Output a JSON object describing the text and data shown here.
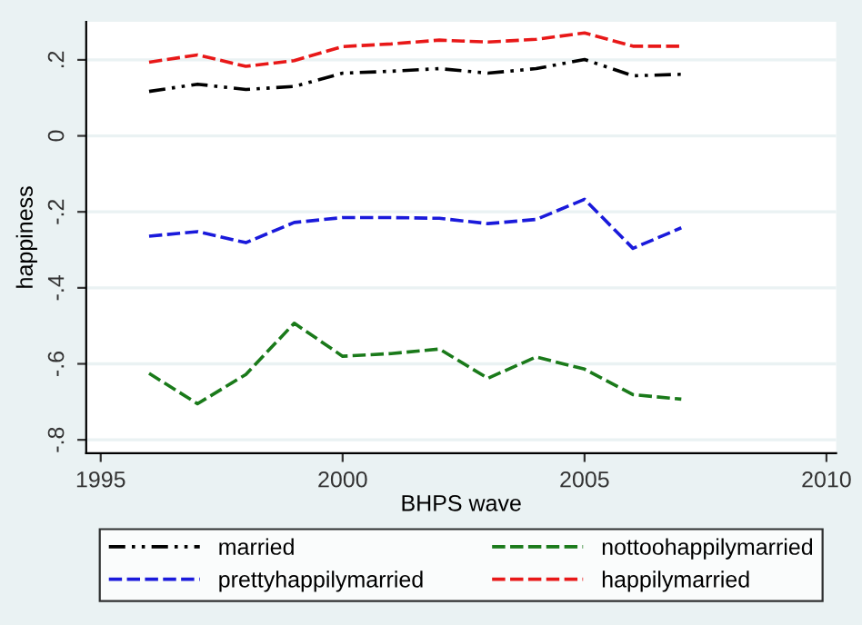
{
  "chart_data": {
    "type": "line",
    "xlabel": "BHPS wave",
    "ylabel": "happiness",
    "x": [
      1996,
      1997,
      1998,
      1999,
      2000,
      2001,
      2002,
      2003,
      2004,
      2005,
      2006,
      2007
    ],
    "series": [
      {
        "name": "married",
        "color": "#000000",
        "line_style": "dashdotdot",
        "values": [
          0.117,
          0.136,
          0.122,
          0.13,
          0.165,
          0.17,
          0.177,
          0.165,
          0.177,
          0.201,
          0.158,
          0.162
        ]
      },
      {
        "name": "nottoohappilymarried",
        "color": "#1a7a1a",
        "line_style": "dashed",
        "values": [
          -0.625,
          -0.705,
          -0.628,
          -0.493,
          -0.58,
          -0.573,
          -0.561,
          -0.638,
          -0.582,
          -0.614,
          -0.681,
          -0.693
        ]
      },
      {
        "name": "prettyhappilymarried",
        "color": "#1a1adb",
        "line_style": "dashed",
        "values": [
          -0.264,
          -0.252,
          -0.281,
          -0.228,
          -0.215,
          -0.215,
          -0.217,
          -0.231,
          -0.22,
          -0.167,
          -0.296,
          -0.242
        ]
      },
      {
        "name": "happilymarried",
        "color": "#e81818",
        "line_style": "dashed",
        "values": [
          0.194,
          0.213,
          0.183,
          0.198,
          0.235,
          0.242,
          0.252,
          0.247,
          0.254,
          0.271,
          0.236,
          0.236
        ]
      }
    ],
    "xlim": [
      1994.7,
      2010.2
    ],
    "ylim": [
      -0.835,
      0.3
    ],
    "xticks": [
      1995,
      2000,
      2005,
      2010
    ],
    "yticks": [
      {
        "value": -0.8,
        "label": "-.8"
      },
      {
        "value": -0.6,
        "label": "-.6"
      },
      {
        "value": -0.4,
        "label": "-.4"
      },
      {
        "value": -0.2,
        "label": "-.2"
      },
      0,
      {
        "value": 0.2,
        "label": ".2"
      }
    ],
    "grid": "y",
    "legend": "bottom",
    "marker": "none"
  }
}
